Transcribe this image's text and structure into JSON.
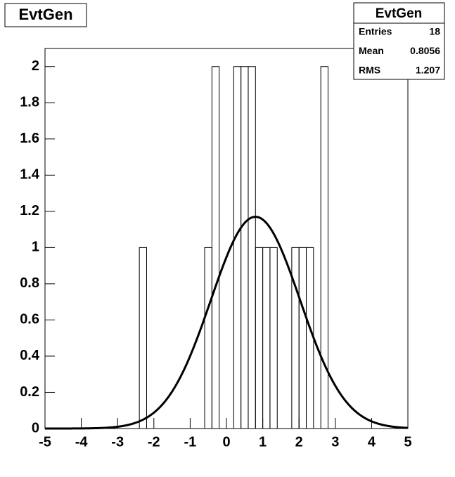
{
  "chart_data": {
    "type": "histogram",
    "title": "EvtGen",
    "bins": [
      -5,
      -4.8,
      -4.6,
      -4.4,
      -4.2,
      -4,
      -3.8,
      -3.6,
      -3.4,
      -3.2,
      -3,
      -2.8,
      -2.6,
      -2.4,
      -2.2,
      -2,
      -1.8,
      -1.6,
      -1.4,
      -1.2,
      -1,
      -0.8,
      -0.6,
      -0.4,
      -0.2,
      0,
      0.2,
      0.4,
      0.6,
      0.8,
      1,
      1.2,
      1.4,
      1.6,
      1.8,
      2,
      2.2,
      2.4,
      2.6,
      2.8,
      3,
      3.2,
      3.4,
      3.6,
      3.8,
      4,
      4.2,
      4.4,
      4.6,
      4.8,
      5
    ],
    "values": [
      0,
      0,
      0,
      0,
      0,
      0,
      0,
      0,
      0,
      0,
      0,
      0,
      0,
      1,
      0,
      0,
      0,
      0,
      0,
      0,
      0,
      0,
      1,
      2,
      0,
      0,
      2,
      2,
      2,
      1,
      1,
      1,
      0,
      0,
      1,
      1,
      1,
      0,
      2,
      0,
      0,
      0,
      0,
      0,
      0,
      0,
      0,
      0,
      0,
      0
    ],
    "color": "#000000",
    "fit": {
      "constant": 1.17,
      "mean": 0.8,
      "sigma": 1.23
    },
    "xlim": [
      -5,
      5
    ],
    "xticks": [
      -5,
      -4,
      -3,
      -2,
      -1,
      0,
      1,
      2,
      3,
      4,
      5
    ],
    "ylim": [
      0,
      2.1
    ],
    "yticks": [
      0,
      0.2,
      0.4,
      0.6,
      0.8,
      1,
      1.2,
      1.4,
      1.6,
      1.8,
      2
    ],
    "stats": {
      "title": "EvtGen",
      "rows": [
        [
          "Entries",
          18
        ],
        [
          "Mean",
          0.8056
        ],
        [
          "RMS",
          1.207
        ]
      ]
    }
  }
}
